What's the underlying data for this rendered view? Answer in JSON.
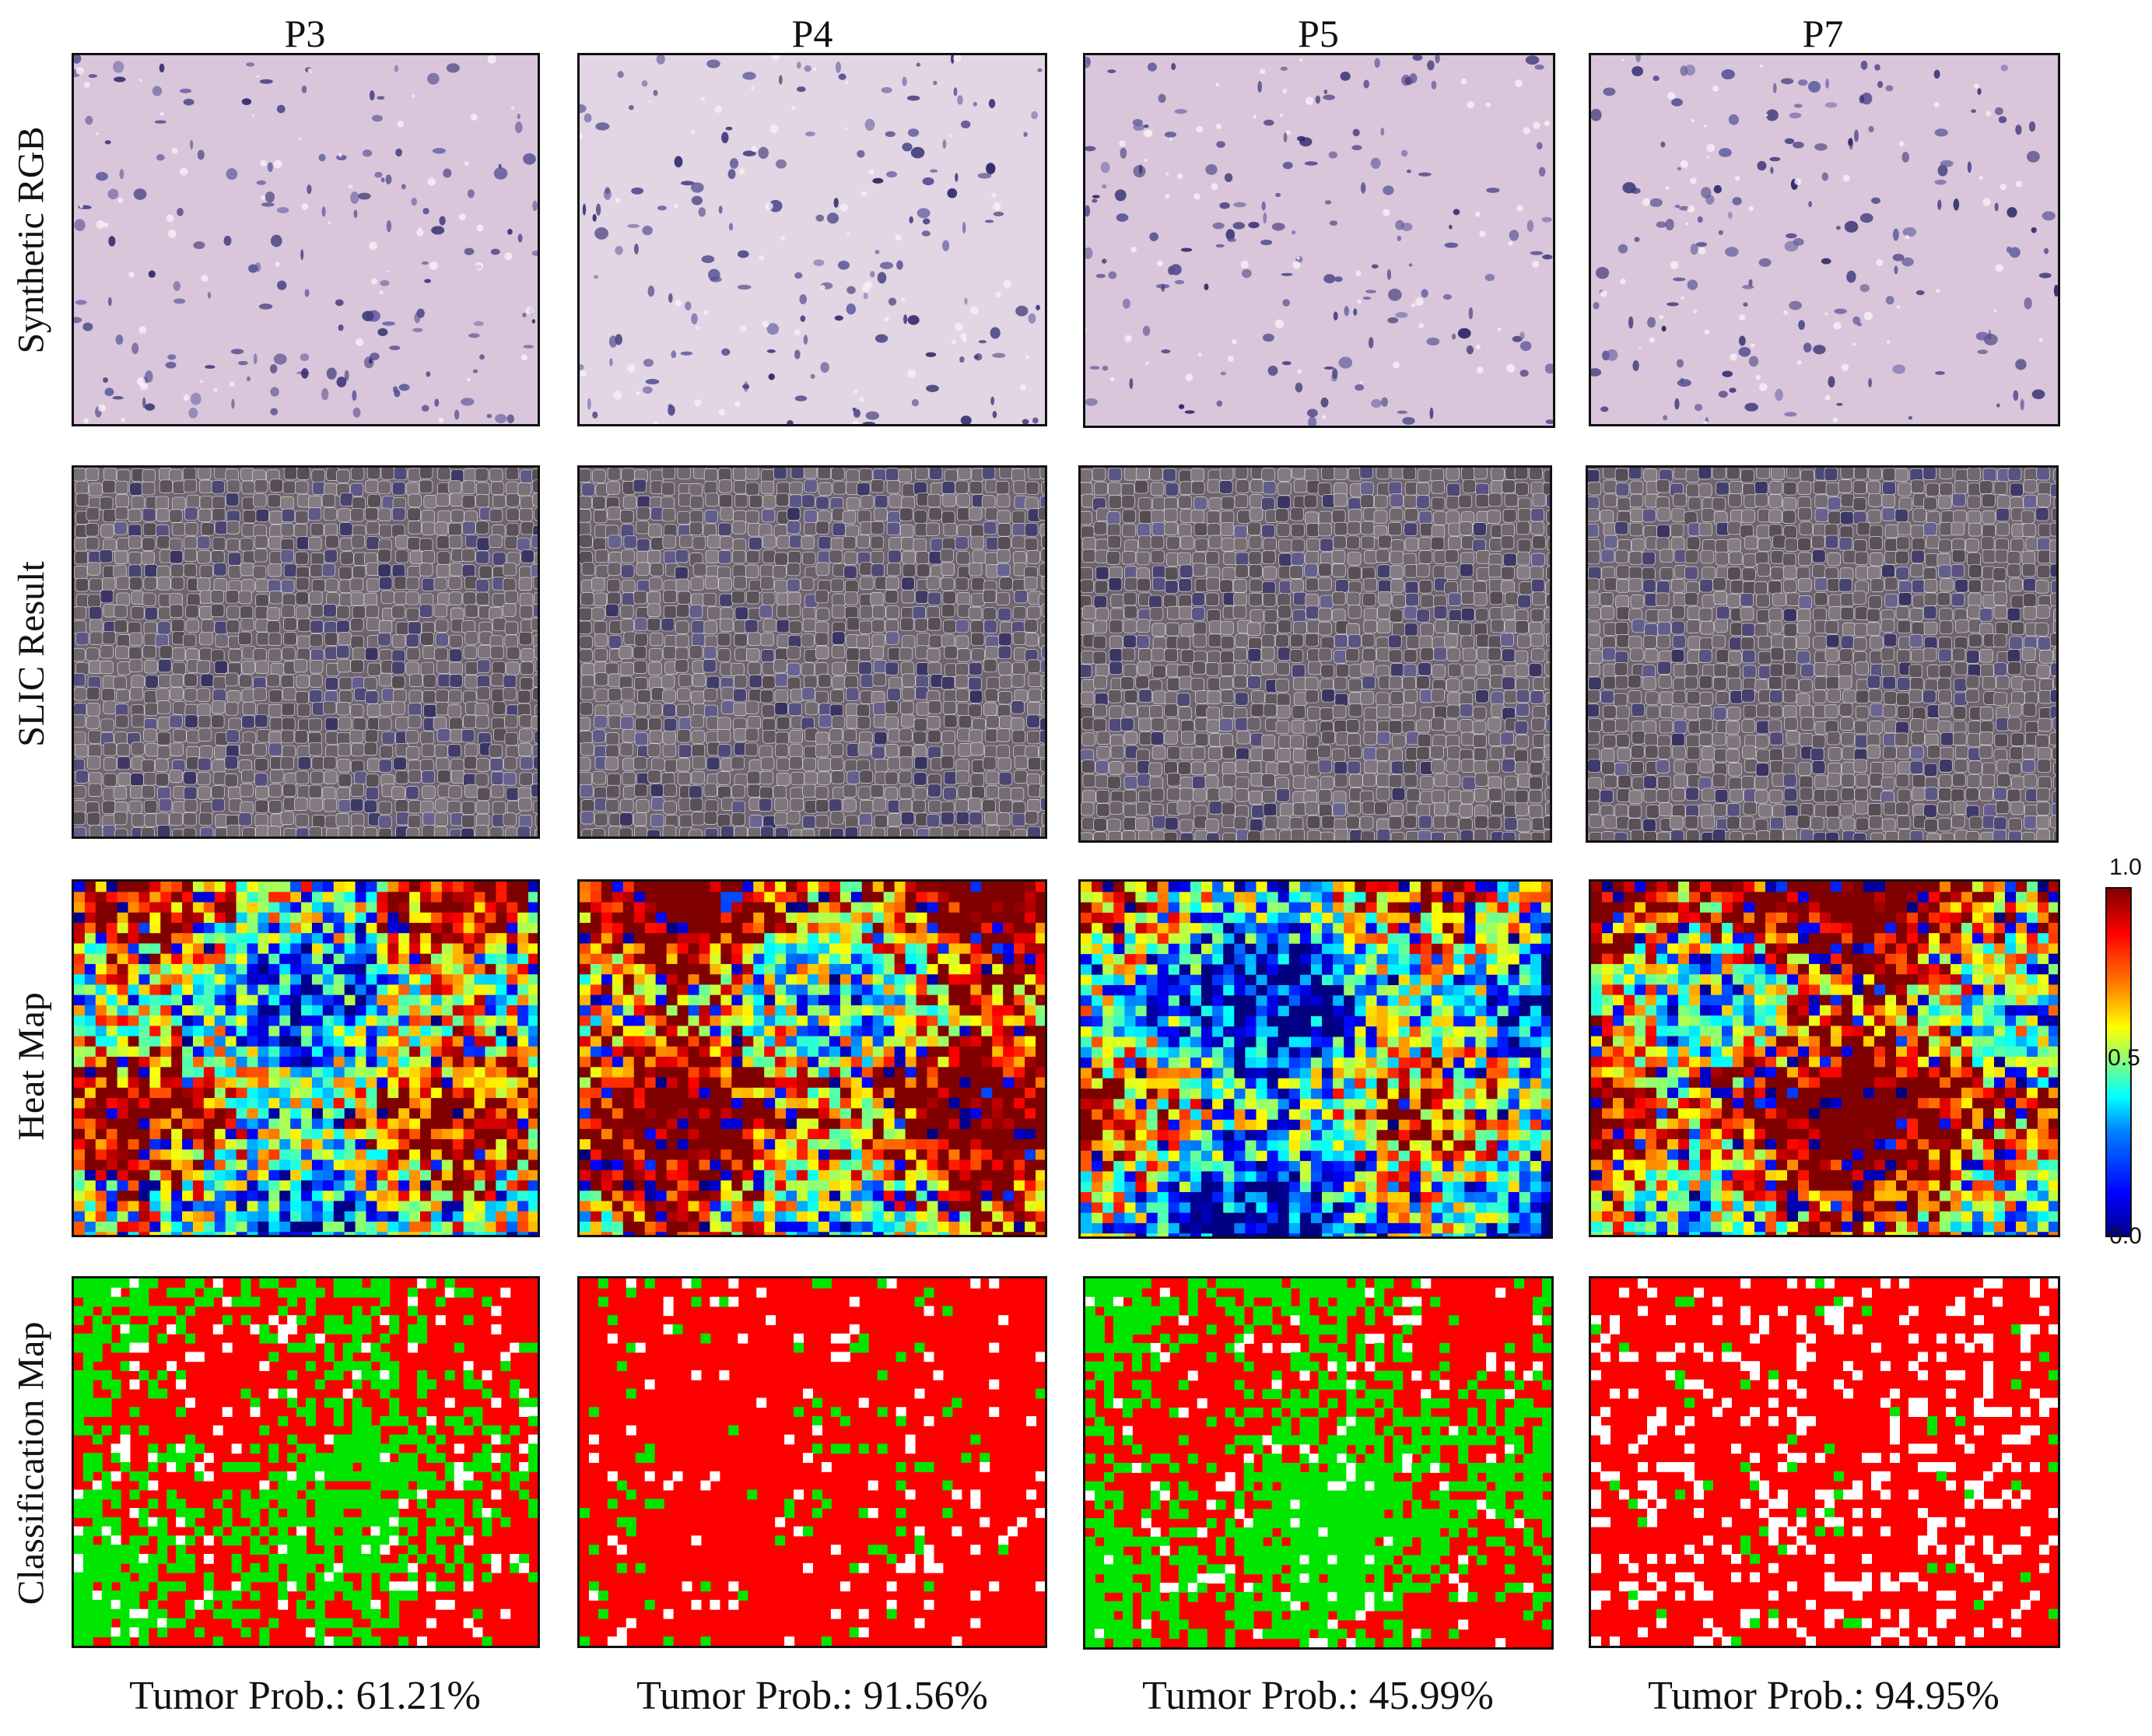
{
  "columns": [
    {
      "title": "P3",
      "caption": "Tumor Prob.: 61.21%"
    },
    {
      "title": "P4",
      "caption": "Tumor Prob.: 91.56%"
    },
    {
      "title": "P5",
      "caption": "Tumor Prob.: 45.99%"
    },
    {
      "title": "P7",
      "caption": "Tumor Prob.: 94.95%"
    }
  ],
  "rows": [
    {
      "label": "Synthetic RGB"
    },
    {
      "label": "SLIC Result"
    },
    {
      "label": "Heat Map"
    },
    {
      "label": "Classification Map"
    }
  ],
  "colorbar": {
    "max_label": "1.0",
    "mid_label": "0.5",
    "min_label": "0.0",
    "colormap": "jet"
  },
  "colors": {
    "tumor": "#ff0000",
    "normal": "#00e600",
    "background": "#ffffff",
    "tissue_pink": "#d9c6db",
    "nucleus_purple": "#3a3778",
    "slic_base": "#6f6470",
    "slic_boundary": "#d8d8d8"
  }
}
